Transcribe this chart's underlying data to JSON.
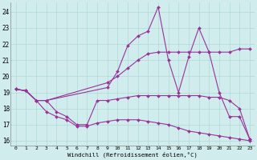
{
  "bg_color": "#d0ecec",
  "grid_color": "#b0d8d8",
  "line_color": "#993399",
  "xlabel": "Windchill (Refroidissement éolien,°C)",
  "xlim": [
    -0.5,
    23.5
  ],
  "ylim": [
    15.7,
    24.6
  ],
  "yticks": [
    16,
    17,
    18,
    19,
    20,
    21,
    22,
    23,
    24
  ],
  "xticks": [
    0,
    1,
    2,
    3,
    4,
    5,
    6,
    7,
    8,
    9,
    10,
    11,
    12,
    13,
    14,
    15,
    16,
    17,
    18,
    19,
    20,
    21,
    22,
    23
  ],
  "series": [
    {
      "x": [
        0,
        1,
        2,
        3,
        9,
        10,
        11,
        12,
        13,
        14,
        15,
        16,
        17,
        18,
        19,
        20,
        21,
        22,
        23
      ],
      "y": [
        19.2,
        19.1,
        18.5,
        18.5,
        19.6,
        20.0,
        20.5,
        21.0,
        21.4,
        21.5,
        21.5,
        21.5,
        21.5,
        21.5,
        21.5,
        21.5,
        21.5,
        21.7,
        21.7
      ]
    },
    {
      "x": [
        0,
        1,
        2,
        3,
        9,
        10,
        11,
        12,
        13,
        14,
        15,
        16,
        17,
        18,
        19,
        20,
        21,
        22,
        23
      ],
      "y": [
        19.2,
        19.1,
        18.5,
        18.5,
        19.3,
        20.3,
        21.9,
        22.5,
        22.8,
        24.3,
        21.0,
        19.0,
        21.2,
        23.0,
        21.5,
        19.0,
        17.5,
        17.5,
        16.1
      ]
    },
    {
      "x": [
        0,
        1,
        2,
        3,
        4,
        5,
        6,
        7,
        8,
        9,
        10,
        11,
        12,
        13,
        14,
        15,
        16,
        17,
        18,
        19,
        20,
        21,
        22,
        23
      ],
      "y": [
        19.2,
        19.1,
        18.5,
        18.5,
        17.8,
        17.5,
        17.0,
        17.0,
        18.5,
        18.5,
        18.6,
        18.7,
        18.8,
        18.8,
        18.8,
        18.8,
        18.8,
        18.8,
        18.8,
        18.7,
        18.7,
        18.5,
        18.0,
        16.1
      ]
    },
    {
      "x": [
        0,
        1,
        2,
        3,
        4,
        5,
        6,
        7,
        8,
        9,
        10,
        11,
        12,
        13,
        14,
        15,
        16,
        17,
        18,
        19,
        20,
        21,
        22,
        23
      ],
      "y": [
        19.2,
        19.1,
        18.5,
        17.8,
        17.5,
        17.3,
        16.9,
        16.9,
        17.1,
        17.2,
        17.3,
        17.3,
        17.3,
        17.2,
        17.1,
        17.0,
        16.8,
        16.6,
        16.5,
        16.4,
        16.3,
        16.2,
        16.1,
        16.0
      ]
    }
  ]
}
